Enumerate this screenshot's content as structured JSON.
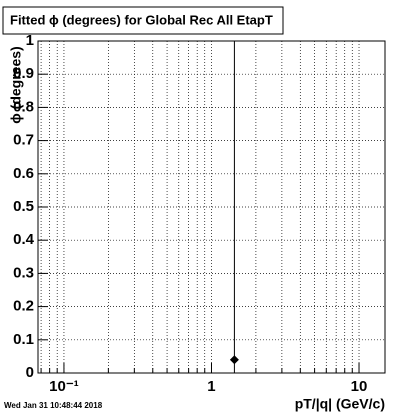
{
  "chart_data": {
    "type": "scatter",
    "title": "Fitted ϕ (degrees) for Global Rec All EtapT",
    "x_label": "pT/|q| (GeV/c)",
    "y_label": "ϕ (degrees)",
    "footer": "Wed Jan 31 10:48:44 2018",
    "x": [
      1.43
    ],
    "values": [
      0.04
    ],
    "yerr": [
      1
    ],
    "color": "#000000",
    "xscale": "log",
    "xlim": [
      0.0667,
      15
    ],
    "xticks": [
      {
        "value": 0.1,
        "label": "10⁻¹"
      },
      1,
      10
    ],
    "xminorticks": [
      0.07,
      0.08,
      0.09,
      0.2,
      0.3,
      0.4,
      0.5,
      0.6,
      0.7,
      0.8,
      0.9,
      2,
      3,
      4,
      5,
      6,
      7,
      8,
      9
    ],
    "ylim": [
      0,
      1
    ],
    "yticks": [
      0,
      0.1,
      0.2,
      0.3,
      0.4,
      0.5,
      0.6,
      0.7,
      0.8,
      0.9,
      1
    ],
    "grid": true
  }
}
